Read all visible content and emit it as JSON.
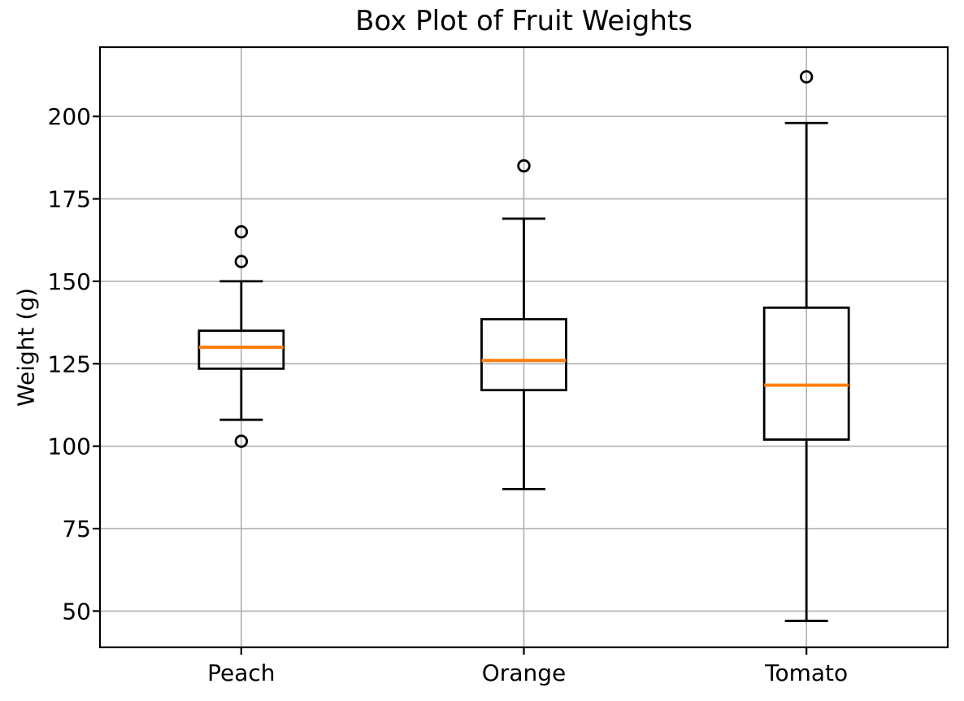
{
  "page": {
    "background": "#ffffff"
  },
  "chart_data": {
    "type": "boxplot",
    "title": "Box Plot of Fruit Weights",
    "xlabel": "",
    "ylabel": "Weight (g)",
    "categories": [
      "Peach",
      "Orange",
      "Tomato"
    ],
    "yticks": [
      50,
      75,
      100,
      125,
      150,
      175,
      200
    ],
    "ylim": [
      39,
      221
    ],
    "grid": true,
    "legend": "none",
    "series": [
      {
        "name": "Peach",
        "whisker_low": 108,
        "q1": 123.5,
        "median": 130,
        "q3": 135,
        "whisker_high": 150,
        "outliers": [
          165,
          156,
          101.5
        ]
      },
      {
        "name": "Orange",
        "whisker_low": 87,
        "q1": 117,
        "median": 126,
        "q3": 138.5,
        "whisker_high": 169,
        "outliers": [
          185
        ]
      },
      {
        "name": "Tomato",
        "whisker_low": 47,
        "q1": 102,
        "median": 118.5,
        "q3": 142,
        "whisker_high": 198,
        "outliers": [
          212
        ]
      }
    ],
    "colors": {
      "box_stroke": "#000000",
      "median_line": "#ff7f0e",
      "grid_line": "#b0b0b0",
      "flier_edge": "#000000",
      "background": "#ffffff"
    }
  }
}
